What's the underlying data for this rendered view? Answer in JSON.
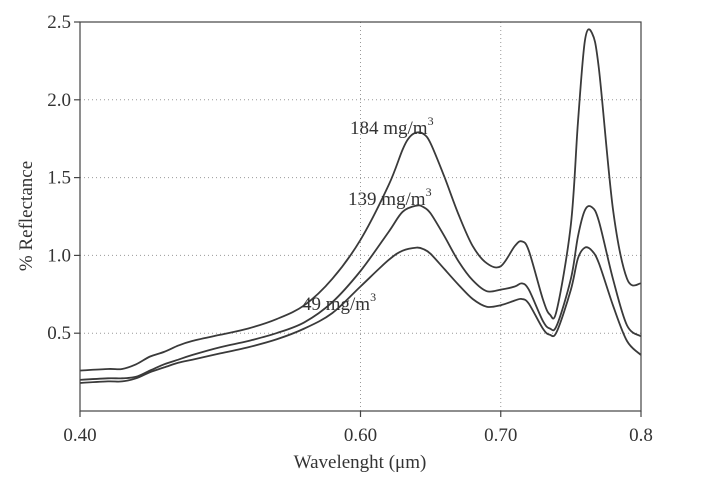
{
  "chart_data": {
    "type": "line",
    "xlabel": "Wavelenght (μm)",
    "ylabel": "% Reflectance",
    "xlim": [
      0.4,
      0.8
    ],
    "ylim": [
      0,
      2.5
    ],
    "x_ticks": [
      "0.40",
      "0.60",
      "0.70",
      "0.8"
    ],
    "x_tick_values": [
      0.4,
      0.6,
      0.7,
      0.8
    ],
    "y_ticks": [
      "0.5",
      "1.0",
      "1.5",
      "2.0",
      "2.5"
    ],
    "y_tick_values": [
      0.5,
      1.0,
      1.5,
      2.0,
      2.5
    ],
    "grid": "dotted",
    "x_grid_values": [
      0.6,
      0.7
    ],
    "series": [
      {
        "name": "184 mg/m3",
        "label_text": "184 mg/m",
        "label_sup": "3",
        "x": [
          0.4,
          0.42,
          0.43,
          0.44,
          0.45,
          0.46,
          0.47,
          0.48,
          0.5,
          0.52,
          0.54,
          0.56,
          0.58,
          0.6,
          0.62,
          0.63,
          0.635,
          0.64,
          0.645,
          0.65,
          0.66,
          0.67,
          0.68,
          0.69,
          0.7,
          0.71,
          0.715,
          0.72,
          0.73,
          0.735,
          0.74,
          0.75,
          0.755,
          0.76,
          0.765,
          0.77,
          0.78,
          0.79,
          0.8
        ],
        "values": [
          0.26,
          0.27,
          0.27,
          0.3,
          0.35,
          0.38,
          0.42,
          0.45,
          0.49,
          0.53,
          0.59,
          0.68,
          0.85,
          1.1,
          1.45,
          1.68,
          1.76,
          1.79,
          1.78,
          1.72,
          1.5,
          1.26,
          1.06,
          0.95,
          0.93,
          1.06,
          1.09,
          1.03,
          0.72,
          0.62,
          0.65,
          1.2,
          1.85,
          2.38,
          2.43,
          2.2,
          1.3,
          0.85,
          0.82
        ]
      },
      {
        "name": "139 mg/m3",
        "label_text": "139 mg/m",
        "label_sup": "3",
        "x": [
          0.4,
          0.42,
          0.43,
          0.44,
          0.45,
          0.46,
          0.47,
          0.48,
          0.5,
          0.52,
          0.54,
          0.56,
          0.58,
          0.6,
          0.62,
          0.63,
          0.64,
          0.645,
          0.65,
          0.66,
          0.67,
          0.68,
          0.69,
          0.7,
          0.71,
          0.715,
          0.72,
          0.73,
          0.735,
          0.74,
          0.75,
          0.755,
          0.76,
          0.765,
          0.77,
          0.78,
          0.79,
          0.8
        ],
        "values": [
          0.2,
          0.21,
          0.21,
          0.22,
          0.26,
          0.3,
          0.33,
          0.36,
          0.41,
          0.45,
          0.5,
          0.57,
          0.7,
          0.9,
          1.15,
          1.28,
          1.32,
          1.31,
          1.27,
          1.12,
          0.96,
          0.84,
          0.77,
          0.78,
          0.8,
          0.82,
          0.78,
          0.58,
          0.53,
          0.55,
          0.85,
          1.12,
          1.29,
          1.31,
          1.22,
          0.85,
          0.55,
          0.48
        ]
      },
      {
        "name": "49 mg/m3",
        "label_text": "49 mg/m",
        "label_sup": "3",
        "x": [
          0.4,
          0.42,
          0.43,
          0.44,
          0.45,
          0.46,
          0.47,
          0.48,
          0.5,
          0.52,
          0.54,
          0.56,
          0.58,
          0.6,
          0.62,
          0.63,
          0.64,
          0.645,
          0.65,
          0.66,
          0.67,
          0.68,
          0.69,
          0.7,
          0.71,
          0.715,
          0.72,
          0.73,
          0.735,
          0.74,
          0.75,
          0.755,
          0.76,
          0.765,
          0.77,
          0.78,
          0.79,
          0.8
        ],
        "values": [
          0.18,
          0.19,
          0.19,
          0.21,
          0.25,
          0.28,
          0.31,
          0.33,
          0.37,
          0.41,
          0.46,
          0.53,
          0.63,
          0.8,
          0.97,
          1.03,
          1.05,
          1.04,
          1.01,
          0.91,
          0.81,
          0.72,
          0.67,
          0.68,
          0.71,
          0.72,
          0.69,
          0.53,
          0.49,
          0.51,
          0.78,
          0.98,
          1.05,
          1.03,
          0.95,
          0.68,
          0.45,
          0.36
        ]
      }
    ]
  }
}
